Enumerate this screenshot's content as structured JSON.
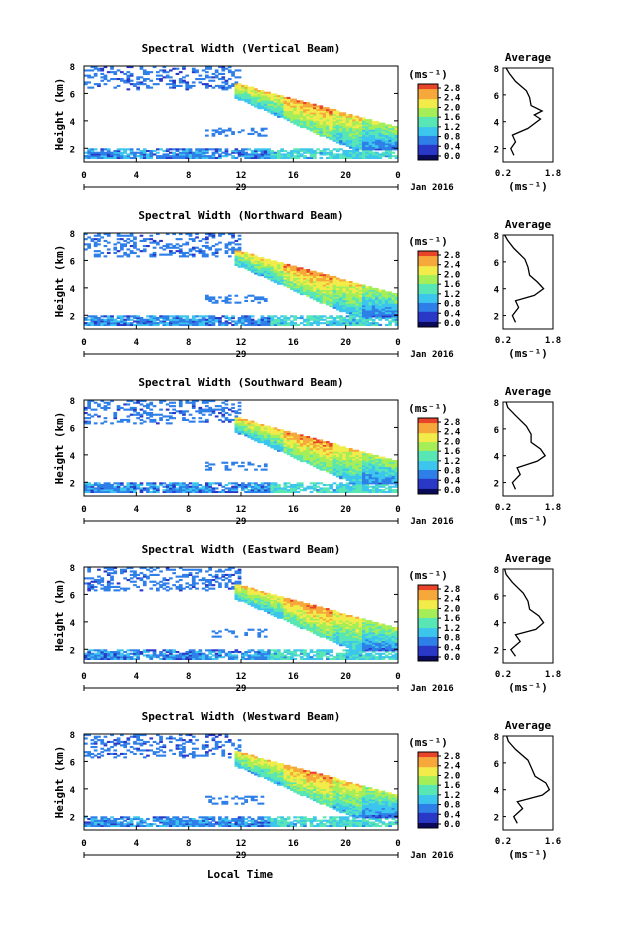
{
  "chart_data": [
    {
      "type": "heatmap",
      "title": "Spectral Width (Vertical Beam)",
      "ylabel": "Height (km)",
      "x_ticks": [
        "0",
        "4",
        "8",
        "12",
        "16",
        "20",
        "0"
      ],
      "x_date_label": "29",
      "x_month_label": "Jan 2016",
      "xlim_hours": [
        0,
        24
      ],
      "ylim_km": [
        1,
        8
      ],
      "y_ticks": [
        "2",
        "4",
        "6",
        "8"
      ],
      "colorbar": {
        "unit": "(ms⁻¹)",
        "ticks": [
          "2.8",
          "2.4",
          "2.0",
          "1.6",
          "1.2",
          "0.8",
          "0.4",
          "0.0"
        ]
      },
      "profile": {
        "title": "Average",
        "xlabel": "(ms⁻¹)",
        "x_ticks": [
          "0.2",
          "1.8"
        ],
        "y_ticks": [
          "2",
          "4",
          "6",
          "8"
        ],
        "points": [
          [
            0.55,
            1.5
          ],
          [
            0.45,
            2.0
          ],
          [
            0.6,
            2.5
          ],
          [
            0.5,
            3.0
          ],
          [
            1.0,
            3.5
          ],
          [
            1.4,
            4.2
          ],
          [
            1.2,
            4.5
          ],
          [
            1.45,
            4.8
          ],
          [
            1.1,
            5.2
          ],
          [
            1.05,
            5.8
          ],
          [
            0.95,
            6.3
          ],
          [
            0.6,
            7.0
          ],
          [
            0.4,
            7.6
          ],
          [
            0.3,
            8.0
          ]
        ]
      }
    },
    {
      "type": "heatmap",
      "title": "Spectral Width (Northward Beam)",
      "ylabel": "Height (km)",
      "x_ticks": [
        "0",
        "4",
        "8",
        "12",
        "16",
        "20",
        "0"
      ],
      "x_date_label": "29",
      "x_month_label": "Jan 2016",
      "xlim_hours": [
        0,
        24
      ],
      "ylim_km": [
        1,
        8
      ],
      "y_ticks": [
        "2",
        "4",
        "6",
        "8"
      ],
      "colorbar": {
        "unit": "(ms⁻¹)",
        "ticks": [
          "2.8",
          "2.4",
          "2.0",
          "1.6",
          "1.2",
          "0.8",
          "0.4",
          "0.0"
        ]
      },
      "profile": {
        "title": "Average",
        "xlabel": "(ms⁻¹)",
        "x_ticks": [
          "0.2",
          "1.8"
        ],
        "y_ticks": [
          "2",
          "4",
          "6",
          "8"
        ],
        "points": [
          [
            0.6,
            1.5
          ],
          [
            0.5,
            2.0
          ],
          [
            0.7,
            2.6
          ],
          [
            0.6,
            3.1
          ],
          [
            1.2,
            3.5
          ],
          [
            1.5,
            4.0
          ],
          [
            1.3,
            4.5
          ],
          [
            1.05,
            5.0
          ],
          [
            1.0,
            5.6
          ],
          [
            0.9,
            6.2
          ],
          [
            0.55,
            7.0
          ],
          [
            0.35,
            7.6
          ],
          [
            0.25,
            8.0
          ]
        ]
      }
    },
    {
      "type": "heatmap",
      "title": "Spectral Width (Southward Beam)",
      "ylabel": "Height (km)",
      "x_ticks": [
        "0",
        "4",
        "8",
        "12",
        "16",
        "20",
        "0"
      ],
      "x_date_label": "29",
      "x_month_label": "Jan 2016",
      "xlim_hours": [
        0,
        24
      ],
      "ylim_km": [
        1,
        8
      ],
      "y_ticks": [
        "2",
        "4",
        "6",
        "8"
      ],
      "colorbar": {
        "unit": "(ms⁻¹)",
        "ticks": [
          "2.8",
          "2.4",
          "2.0",
          "1.6",
          "1.2",
          "0.8",
          "0.4",
          "0.0"
        ]
      },
      "profile": {
        "title": "Average",
        "xlabel": "(ms⁻¹)",
        "x_ticks": [
          "0.2",
          "1.8"
        ],
        "y_ticks": [
          "2",
          "4",
          "6",
          "8"
        ],
        "points": [
          [
            0.6,
            1.5
          ],
          [
            0.5,
            2.0
          ],
          [
            0.75,
            2.6
          ],
          [
            0.65,
            3.1
          ],
          [
            1.3,
            3.6
          ],
          [
            1.55,
            4.0
          ],
          [
            1.4,
            4.5
          ],
          [
            1.1,
            5.0
          ],
          [
            1.1,
            5.6
          ],
          [
            0.95,
            6.2
          ],
          [
            0.6,
            7.0
          ],
          [
            0.35,
            7.6
          ],
          [
            0.3,
            8.0
          ]
        ]
      }
    },
    {
      "type": "heatmap",
      "title": "Spectral Width (Eastward Beam)",
      "ylabel": "Height (km)",
      "x_ticks": [
        "0",
        "4",
        "8",
        "12",
        "16",
        "20",
        "0"
      ],
      "x_date_label": "29",
      "x_month_label": "Jan 2016",
      "xlim_hours": [
        0,
        24
      ],
      "ylim_km": [
        1,
        8
      ],
      "y_ticks": [
        "2",
        "4",
        "6",
        "8"
      ],
      "colorbar": {
        "unit": "(ms⁻¹)",
        "ticks": [
          "2.8",
          "2.4",
          "2.0",
          "1.6",
          "1.2",
          "0.8",
          "0.4",
          "0.0"
        ]
      },
      "profile": {
        "title": "Average",
        "xlabel": "(ms⁻¹)",
        "x_ticks": [
          "0.2",
          "1.8"
        ],
        "y_ticks": [
          "2",
          "4",
          "6",
          "8"
        ],
        "points": [
          [
            0.6,
            1.5
          ],
          [
            0.45,
            2.0
          ],
          [
            0.75,
            2.6
          ],
          [
            0.6,
            3.1
          ],
          [
            1.25,
            3.5
          ],
          [
            1.5,
            4.0
          ],
          [
            1.35,
            4.5
          ],
          [
            1.05,
            5.0
          ],
          [
            1.0,
            5.6
          ],
          [
            0.85,
            6.2
          ],
          [
            0.5,
            7.0
          ],
          [
            0.3,
            7.6
          ],
          [
            0.25,
            8.0
          ]
        ]
      }
    },
    {
      "type": "heatmap",
      "title": "Spectral Width (Westward Beam)",
      "ylabel": "Height (km)",
      "x_ticks": [
        "0",
        "4",
        "8",
        "12",
        "16",
        "20",
        "0"
      ],
      "x_date_label": "29",
      "x_month_label": "Jan 2016",
      "xlim_hours": [
        0,
        24
      ],
      "ylim_km": [
        1,
        8
      ],
      "y_ticks": [
        "2",
        "4",
        "6",
        "8"
      ],
      "colorbar": {
        "unit": "(ms⁻¹)",
        "ticks": [
          "2.8",
          "2.4",
          "2.0",
          "1.6",
          "1.2",
          "0.8",
          "0.4",
          "0.0"
        ]
      },
      "profile": {
        "title": "Average",
        "xlabel": "(ms⁻¹)",
        "x_ticks": [
          "0.2",
          "1.6"
        ],
        "y_ticks": [
          "2",
          "4",
          "6",
          "8"
        ],
        "points": [
          [
            0.6,
            1.5
          ],
          [
            0.5,
            2.0
          ],
          [
            0.75,
            2.6
          ],
          [
            0.6,
            3.1
          ],
          [
            1.3,
            3.6
          ],
          [
            1.5,
            4.0
          ],
          [
            1.4,
            4.5
          ],
          [
            1.1,
            5.0
          ],
          [
            1.0,
            5.6
          ],
          [
            0.9,
            6.2
          ],
          [
            0.55,
            7.0
          ],
          [
            0.35,
            7.6
          ],
          [
            0.3,
            8.0
          ]
        ]
      }
    }
  ],
  "x_axis_title": "Local Time",
  "colormap": [
    "#0a0a5a",
    "#2a38c8",
    "#2f7fe8",
    "#3cc6ee",
    "#58e6b4",
    "#a6ee58",
    "#f2ec4a",
    "#f7a83a",
    "#e8442a"
  ]
}
